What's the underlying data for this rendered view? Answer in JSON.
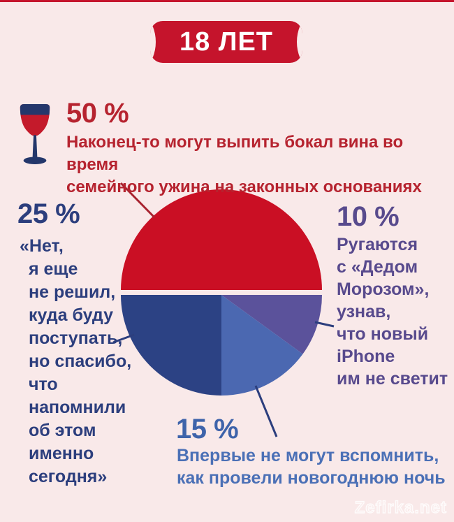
{
  "page": {
    "background": "#f9e9e9",
    "top_strip_color": "#c5142c",
    "watermark": "Zefirka.net"
  },
  "badge": {
    "label": "18 ЛЕТ",
    "bg": "#c5142c",
    "text_color": "#ffffff"
  },
  "chart_data": {
    "type": "pie",
    "title": "18 ЛЕТ",
    "legend_position": "callouts-around-pie",
    "grid": false,
    "slices": [
      {
        "label": "50 %",
        "value": 50,
        "color": "#ca0f24",
        "text_color": "#b6232f",
        "exploded": true,
        "description": "Наконец-то могут выпить бокал вина во время\nсемейного ужина на законных основаниях"
      },
      {
        "label": "10 %",
        "value": 10,
        "color": "#5b529b",
        "text_color": "#584a8d",
        "exploded": false,
        "description": "Ругаются\nс «Дедом\nМорозом»,\nузнав,\nчто новый\niPhone\nим не светит"
      },
      {
        "label": "15 %",
        "value": 15,
        "color": "#4b68b1",
        "text_color": "#4b70b6",
        "exploded": false,
        "description": "Впервые не могут вспомнить,\nкак провели новогоднюю ночь"
      },
      {
        "label": "25 %",
        "value": 25,
        "color": "#2c4284",
        "text_color": "#2c3e7d",
        "exploded": false,
        "description": "«Нет,\nя еще\nне решил,\nкуда буду\nпоступать,\nно спасибо,\nчто напомнили\nоб этом именно\nсегодня»"
      }
    ]
  },
  "icons": {
    "wine_glass": {
      "glass_color": "#24376b",
      "wine_color": "#c41a2b"
    }
  }
}
